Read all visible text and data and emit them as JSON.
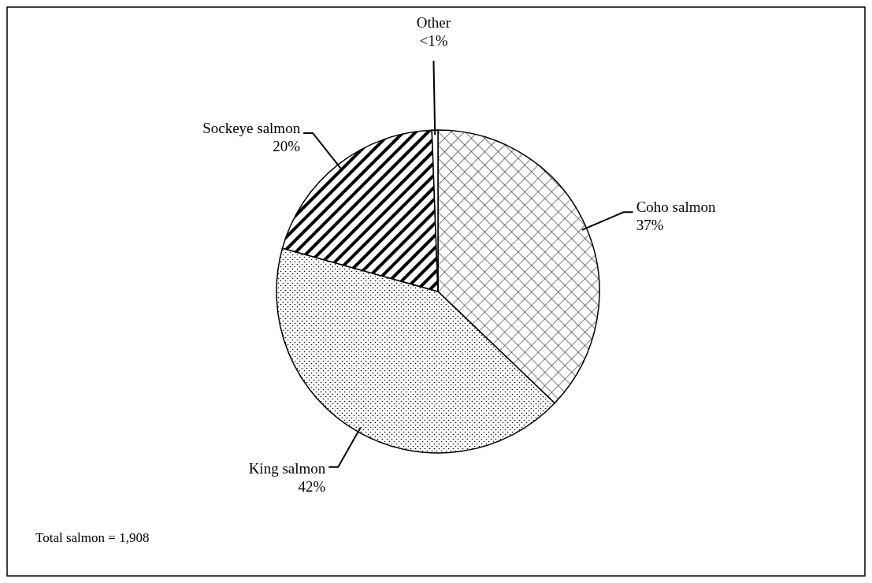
{
  "chart_data": {
    "type": "pie",
    "categories": [
      "Coho salmon",
      "King salmon",
      "Sockeye salmon",
      "Other"
    ],
    "values": [
      37,
      42,
      20,
      0.6
    ],
    "value_labels": [
      "37%",
      "42%",
      "20%",
      "<1%"
    ],
    "colors": [
      "#ffffff",
      "#ffffff",
      "#ffffff",
      "#ffffff"
    ],
    "annotations": [
      "Total salmon = 1,908"
    ]
  }
}
